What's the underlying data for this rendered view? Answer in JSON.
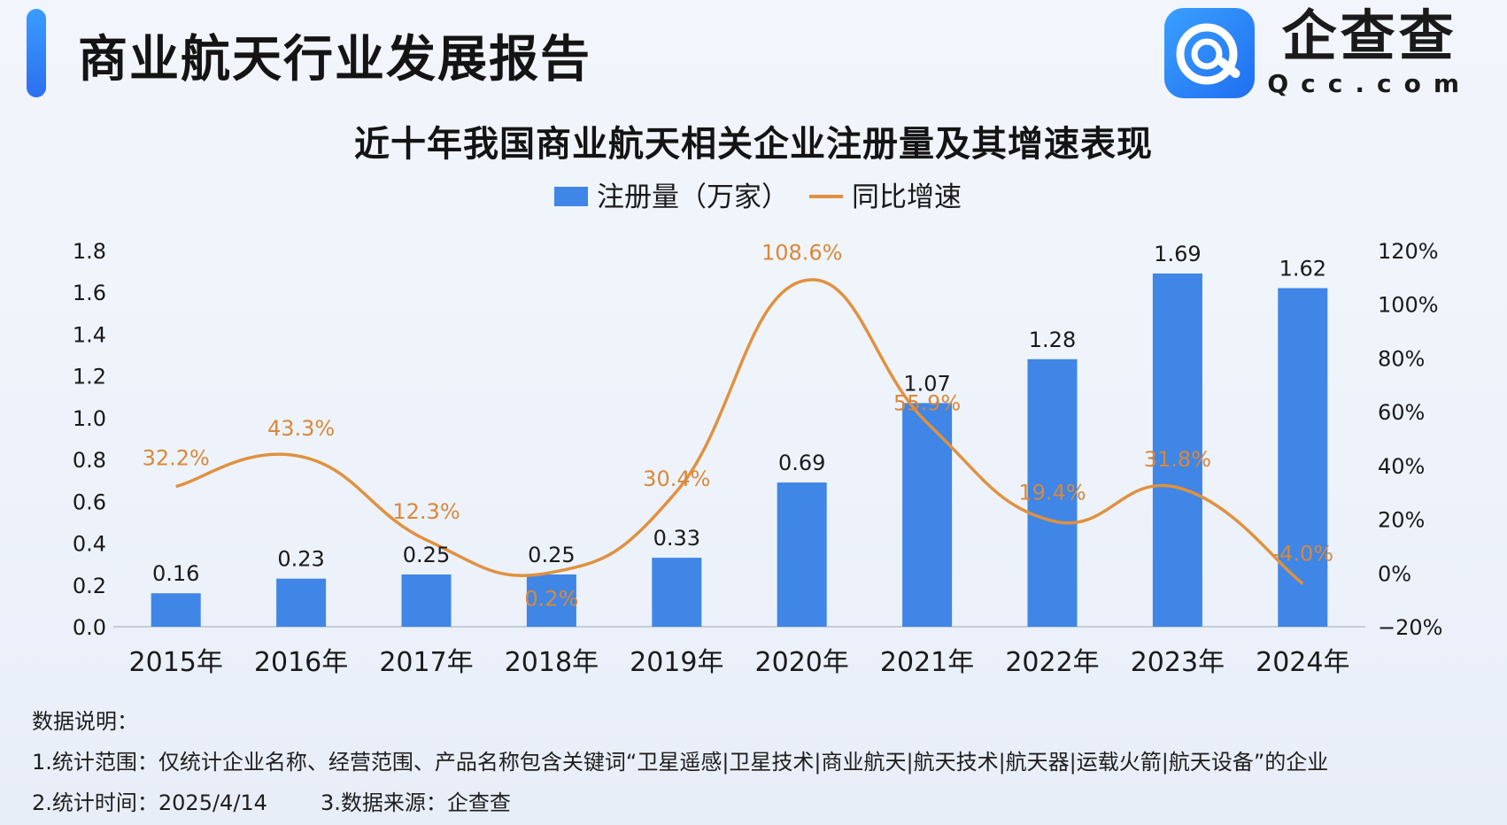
{
  "header": {
    "report_title": "商业航天行业发展报告",
    "logo_cn": "企查查",
    "logo_en": "Qcc.com"
  },
  "chart_title": "近十年我国商业航天相关企业注册量及其增速表现",
  "colors": {
    "bar": "#3f86e6",
    "line": "#e0913f",
    "accent": "#2f7cf6"
  },
  "chart_data": {
    "type": "bar",
    "title": "近十年我国商业航天相关企业注册量及其增速表现",
    "categories": [
      "2015年",
      "2016年",
      "2017年",
      "2018年",
      "2019年",
      "2020年",
      "2021年",
      "2022年",
      "2023年",
      "2024年"
    ],
    "series": [
      {
        "name": "注册量（万家）",
        "type": "bar",
        "axis": "left",
        "values": [
          0.16,
          0.23,
          0.25,
          0.25,
          0.33,
          0.69,
          1.07,
          1.28,
          1.69,
          1.62
        ],
        "labels": [
          "0.16",
          "0.23",
          "0.25",
          "0.25",
          "0.33",
          "0.69",
          "1.07",
          "1.28",
          "1.69",
          "1.62"
        ]
      },
      {
        "name": "同比增速",
        "type": "line",
        "axis": "right",
        "values": [
          32.2,
          43.3,
          12.3,
          0.2,
          30.4,
          108.6,
          55.9,
          19.4,
          31.8,
          -4.0
        ],
        "labels": [
          "32.2%",
          "43.3%",
          "12.3%",
          "0.2%",
          "30.4%",
          "108.6%",
          "55.9%",
          "19.4%",
          "31.8%",
          "-4.0%"
        ]
      }
    ],
    "y_left": {
      "min": 0,
      "max": 1.8,
      "ticks": [
        "0.0",
        "0.2",
        "0.4",
        "0.6",
        "0.8",
        "1.0",
        "1.2",
        "1.4",
        "1.6",
        "1.8"
      ]
    },
    "y_right": {
      "min": -20,
      "max": 120,
      "ticks": [
        "−20%",
        "0%",
        "20%",
        "40%",
        "60%",
        "80%",
        "100%",
        "120%"
      ]
    },
    "legend_position": "top-center",
    "grid": false
  },
  "notes": {
    "heading": "数据说明：",
    "line1": "1.统计范围：仅统计企业名称、经营范围、产品名称包含关键词“卫星遥感|卫星技术|商业航天|航天技术|航天器|运载火箭|航天设备”的企业",
    "line2a": "2.统计时间：2025/4/14",
    "line2b": "3.数据来源：企查查"
  }
}
